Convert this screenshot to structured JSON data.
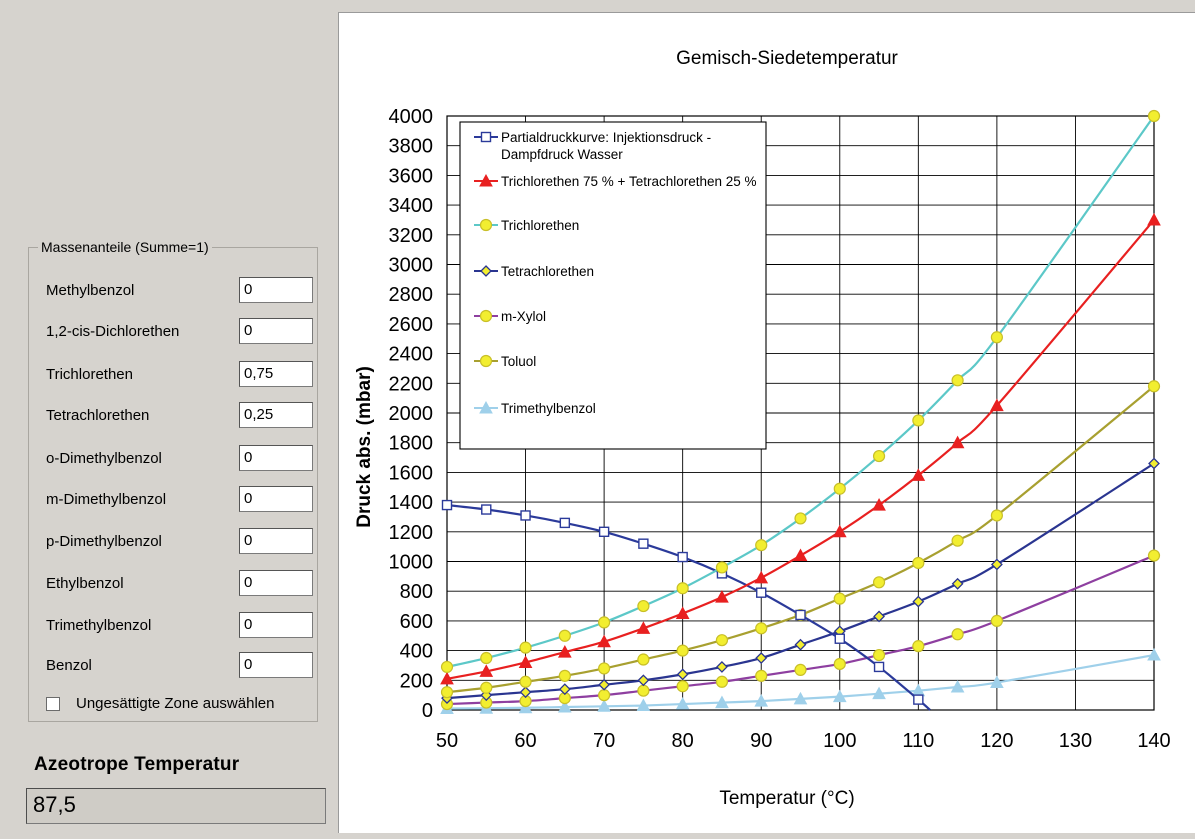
{
  "panel": {
    "group_title": "Massenanteile (Summe=1)",
    "components": [
      {
        "label": "Methylbenzol",
        "value": "0"
      },
      {
        "label": "1,2-cis-Dichlorethen",
        "value": "0"
      },
      {
        "label": "Trichlorethen",
        "value": "0,75"
      },
      {
        "label": "Tetrachlorethen",
        "value": "0,25"
      },
      {
        "label": "o-Dimethylbenzol",
        "value": "0"
      },
      {
        "label": "m-Dimethylbenzol",
        "value": "0"
      },
      {
        "label": "p-Dimethylbenzol",
        "value": "0"
      },
      {
        "label": "Ethylbenzol",
        "value": "0"
      },
      {
        "label": "Trimethylbenzol",
        "value": "0"
      },
      {
        "label": "Benzol",
        "value": "0"
      }
    ],
    "checkbox_label": "Ungesättigte Zone auswählen",
    "checkbox_checked": false,
    "azeotrope_title": "Azeotrope Temperatur",
    "azeotrope_value": "87,5"
  },
  "chart_data": {
    "type": "line",
    "title": "Gemisch-Siedetemperatur",
    "xlabel": "Temperatur (°C)",
    "ylabel": "Druck abs. (mbar)",
    "xlim": [
      50,
      140
    ],
    "ylim": [
      0,
      4000
    ],
    "xticks": [
      50,
      60,
      70,
      80,
      90,
      100,
      110,
      120,
      130,
      140
    ],
    "yticks": [
      0,
      200,
      400,
      600,
      800,
      1000,
      1200,
      1400,
      1600,
      1800,
      2000,
      2200,
      2400,
      2600,
      2800,
      3000,
      3200,
      3400,
      3600,
      3800,
      4000
    ],
    "grid": true,
    "legend_position": "top-left",
    "series": [
      {
        "name": "Partialdruckkurve: Injektionsdruck - Dampfdruck Wasser",
        "color": "#2b3a9a",
        "marker": "square-open",
        "x": [
          50,
          55,
          60,
          65,
          70,
          75,
          80,
          85,
          90,
          95,
          100,
          105,
          110
        ],
        "y": [
          1380,
          1350,
          1310,
          1260,
          1200,
          1120,
          1030,
          920,
          790,
          640,
          480,
          290,
          70
        ],
        "curve_end": [
          111.5,
          0
        ]
      },
      {
        "name": "Trichlorethen 75 % + Tetrachlorethen 25 %",
        "color": "#e82020",
        "marker": "triangle",
        "x": [
          50,
          55,
          60,
          65,
          70,
          75,
          80,
          85,
          90,
          95,
          100,
          105,
          110,
          115,
          120,
          140
        ],
        "y": [
          210,
          260,
          320,
          390,
          460,
          550,
          650,
          760,
          890,
          1040,
          1200,
          1380,
          1580,
          1800,
          2050,
          3300
        ]
      },
      {
        "name": "Trichlorethen",
        "color": "#5cc8c8",
        "marker": "circle",
        "x": [
          50,
          55,
          60,
          65,
          70,
          75,
          80,
          85,
          90,
          95,
          100,
          105,
          110,
          115,
          120,
          140
        ],
        "y": [
          290,
          350,
          420,
          500,
          590,
          700,
          820,
          960,
          1110,
          1290,
          1490,
          1710,
          1950,
          2220,
          2510,
          4000
        ]
      },
      {
        "name": "Tetrachlorethen",
        "color": "#2a3590",
        "marker": "diamond",
        "x": [
          50,
          55,
          60,
          65,
          70,
          75,
          80,
          85,
          90,
          95,
          100,
          105,
          110,
          115,
          120,
          140
        ],
        "y": [
          80,
          100,
          120,
          140,
          170,
          200,
          240,
          290,
          350,
          440,
          530,
          630,
          730,
          850,
          980,
          1660
        ]
      },
      {
        "name": "m-Xylol",
        "color": "#8e3fa0",
        "marker": "circle",
        "x": [
          50,
          55,
          60,
          65,
          70,
          75,
          80,
          85,
          90,
          95,
          100,
          105,
          110,
          115,
          120,
          140
        ],
        "y": [
          40,
          50,
          60,
          80,
          100,
          130,
          160,
          190,
          230,
          270,
          310,
          370,
          430,
          510,
          600,
          1040
        ]
      },
      {
        "name": "Toluol",
        "color": "#a8a030",
        "marker": "circle",
        "x": [
          50,
          55,
          60,
          65,
          70,
          75,
          80,
          85,
          90,
          95,
          100,
          105,
          110,
          115,
          120,
          140
        ],
        "y": [
          120,
          150,
          190,
          230,
          280,
          340,
          400,
          470,
          550,
          640,
          750,
          860,
          990,
          1140,
          1310,
          2180
        ]
      },
      {
        "name": "Trimethylbenzol",
        "color": "#9fd0ea",
        "marker": "triangle",
        "x": [
          50,
          55,
          60,
          65,
          70,
          75,
          80,
          85,
          90,
          95,
          100,
          105,
          110,
          115,
          120,
          140
        ],
        "y": [
          10,
          12,
          15,
          20,
          25,
          30,
          40,
          50,
          60,
          75,
          90,
          110,
          130,
          155,
          185,
          370
        ]
      }
    ]
  }
}
